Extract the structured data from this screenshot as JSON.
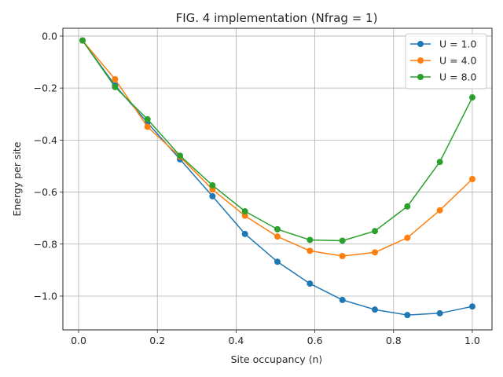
{
  "chart_data": {
    "type": "line",
    "title": "FIG. 4 implementation (Nfrag = 1)",
    "xlabel": "Site occupancy ⟨n⟩",
    "ylabel": "Energy per site",
    "xlim": [
      -0.04,
      1.05
    ],
    "ylim": [
      -1.13,
      0.03
    ],
    "xticks": [
      0.0,
      0.2,
      0.4,
      0.6,
      0.8,
      1.0
    ],
    "xtick_labels": [
      "0.0",
      "0.2",
      "0.4",
      "0.6",
      "0.8",
      "1.0"
    ],
    "yticks": [
      0.0,
      -0.2,
      -0.4,
      -0.6,
      -0.8,
      -1.0
    ],
    "ytick_labels": [
      "0.0",
      "−0.2",
      "−0.4",
      "−0.6",
      "−0.8",
      "−1.0"
    ],
    "grid": true,
    "legend_position": "top-right",
    "x": [
      0.01,
      0.0925,
      0.175,
      0.2575,
      0.34,
      0.4225,
      0.505,
      0.5875,
      0.67,
      0.7525,
      0.835,
      0.9175,
      1.0
    ],
    "series": [
      {
        "name": "U = 1.0",
        "color": "#1f77b4",
        "values": [
          -0.017,
          -0.19,
          -0.333,
          -0.474,
          -0.616,
          -0.761,
          -0.868,
          -0.952,
          -1.015,
          -1.052,
          -1.073,
          -1.066,
          -1.04
        ]
      },
      {
        "name": "U = 4.0",
        "color": "#ff7f0e",
        "values": [
          -0.017,
          -0.166,
          -0.349,
          -0.464,
          -0.59,
          -0.691,
          -0.771,
          -0.826,
          -0.846,
          -0.832,
          -0.776,
          -0.67,
          -0.55
        ]
      },
      {
        "name": "U = 8.0",
        "color": "#2ca02c",
        "values": [
          -0.017,
          -0.196,
          -0.32,
          -0.46,
          -0.574,
          -0.674,
          -0.743,
          -0.784,
          -0.787,
          -0.75,
          -0.655,
          -0.484,
          -0.236
        ]
      }
    ]
  }
}
